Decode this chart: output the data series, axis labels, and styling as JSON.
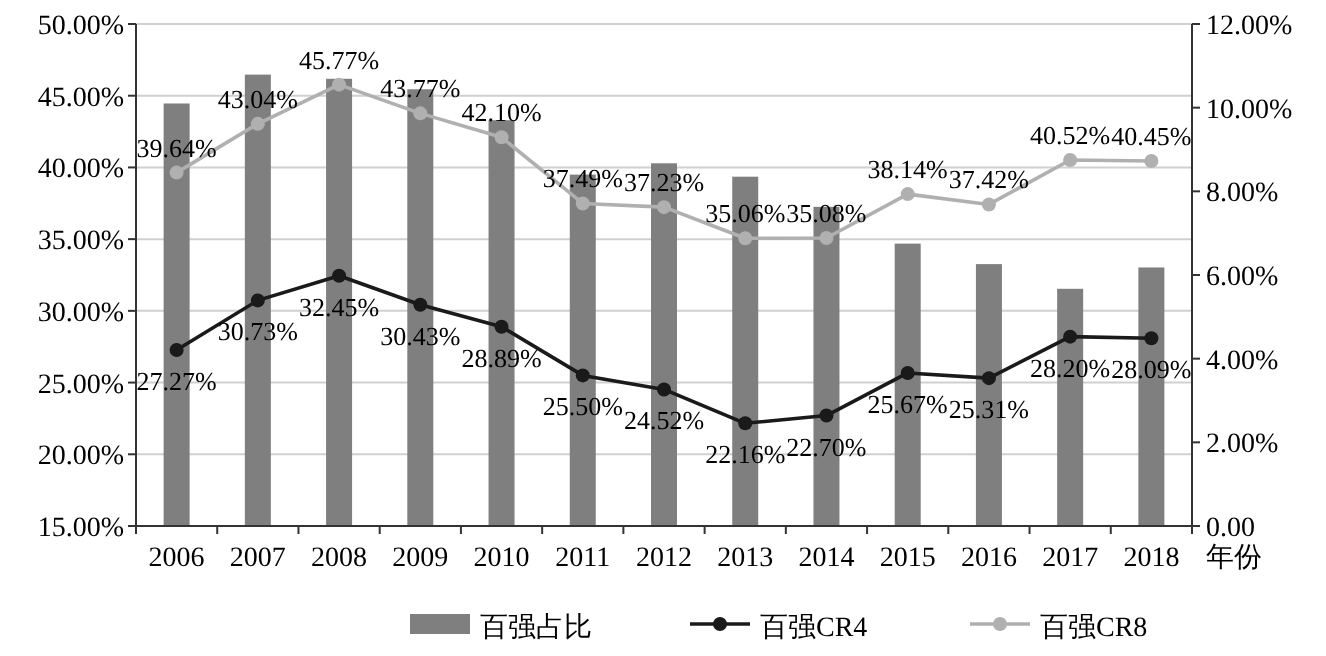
{
  "chart_data": {
    "type": "bar",
    "categories": [
      "2006",
      "2007",
      "2008",
      "2009",
      "2010",
      "2011",
      "2012",
      "2013",
      "2014",
      "2015",
      "2016",
      "2017",
      "2018"
    ],
    "xlabel": "年份",
    "series": [
      {
        "name": "百强占比",
        "axis": "y2",
        "color": "#7f7f7f",
        "values": [
          10.1,
          10.79,
          10.69,
          10.44,
          9.7,
          8.4,
          8.67,
          8.35,
          7.63,
          6.75,
          6.26,
          5.67,
          6.18
        ]
      },
      {
        "name": "百强CR4",
        "type": "line",
        "color": "#1a1a1a",
        "marker": "circle",
        "values": [
          27.27,
          30.73,
          32.45,
          30.43,
          28.89,
          25.5,
          24.52,
          22.16,
          22.7,
          25.67,
          25.31,
          28.2,
          28.09
        ],
        "value_labels": [
          "27.27%",
          "30.73%",
          "32.45%",
          "30.43%",
          "28.89%",
          "25.50%",
          "24.52%",
          "22.16%",
          "22.70%",
          "25.67%",
          "25.31%",
          "28.20%",
          "28.09%"
        ]
      },
      {
        "name": "百强CR8",
        "type": "line",
        "color": "#b0b0b0",
        "marker": "circle",
        "values": [
          39.64,
          43.04,
          45.77,
          43.77,
          42.1,
          37.49,
          37.23,
          35.06,
          35.08,
          38.14,
          37.42,
          40.52,
          40.45
        ],
        "value_labels": [
          "39.64%",
          "43.04%",
          "45.77%",
          "43.77%",
          "42.10%",
          "37.49%",
          "37.23%",
          "35.06%",
          "35.08%",
          "38.14%",
          "37.42%",
          "40.52%",
          "40.45%"
        ]
      }
    ],
    "ylim": [
      15,
      50
    ],
    "yticks": [
      {
        "value": 15,
        "label": "15.00%"
      },
      {
        "value": 20,
        "label": "20.00%"
      },
      {
        "value": 25,
        "label": "25.00%"
      },
      {
        "value": 30,
        "label": "30.00%"
      },
      {
        "value": 35,
        "label": "35.00%"
      },
      {
        "value": 40,
        "label": "40.00%"
      },
      {
        "value": 45,
        "label": "45.00%"
      },
      {
        "value": 50,
        "label": "50.00%"
      }
    ],
    "y2lim": [
      0,
      12
    ],
    "y2ticks": [
      {
        "value": 0,
        "label": "0.00"
      },
      {
        "value": 2,
        "label": "2.00%"
      },
      {
        "value": 4,
        "label": "4.00%"
      },
      {
        "value": 6,
        "label": "6.00%"
      },
      {
        "value": 8,
        "label": "8.00%"
      },
      {
        "value": 10,
        "label": "10.00%"
      },
      {
        "value": 12,
        "label": "12.00%"
      }
    ],
    "grid": "y",
    "legend": "bottom"
  }
}
